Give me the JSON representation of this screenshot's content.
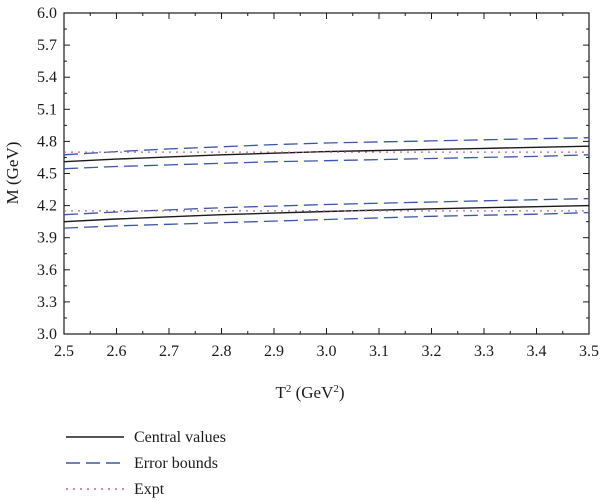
{
  "chart_data": {
    "type": "line",
    "title": "",
    "xlabel": {
      "base": "T",
      "sup": "2",
      "unit_pre": " (GeV",
      "unit_sup": "2",
      "unit_post": ")"
    },
    "ylabel": "M (GeV)",
    "xlim": [
      2.5,
      3.5
    ],
    "ylim": [
      3.0,
      6.0
    ],
    "xticks": [
      "2.5",
      "2.6",
      "2.7",
      "2.8",
      "2.9",
      "3.0",
      "3.1",
      "3.2",
      "3.3",
      "3.4",
      "3.5"
    ],
    "yticks": [
      "3.0",
      "3.3",
      "3.6",
      "3.9",
      "4.2",
      "4.5",
      "4.8",
      "5.1",
      "5.4",
      "5.7",
      "6.0"
    ],
    "x": [
      2.5,
      2.6,
      2.7,
      2.8,
      2.9,
      3.0,
      3.1,
      3.2,
      3.3,
      3.4,
      3.5
    ],
    "series": [
      {
        "name": "Central values",
        "group": "upper",
        "style": "solid",
        "color": "#1a1a1a",
        "values": [
          4.61,
          4.635,
          4.655,
          4.675,
          4.69,
          4.705,
          4.715,
          4.725,
          4.735,
          4.745,
          4.755
        ]
      },
      {
        "name": "Error bounds",
        "group": "upper-high",
        "style": "dashed",
        "color": "#3b55a8",
        "values": [
          4.675,
          4.705,
          4.73,
          4.75,
          4.77,
          4.785,
          4.795,
          4.805,
          4.815,
          4.825,
          4.835
        ]
      },
      {
        "name": "Error bounds",
        "group": "upper-low",
        "style": "dashed",
        "color": "#3b55a8",
        "values": [
          4.545,
          4.565,
          4.58,
          4.595,
          4.61,
          4.62,
          4.63,
          4.64,
          4.65,
          4.66,
          4.675
        ]
      },
      {
        "name": "Expt",
        "group": "upper",
        "style": "dotted",
        "color": "#c0609c",
        "values": [
          4.7,
          4.7,
          4.7,
          4.7,
          4.7,
          4.7,
          4.7,
          4.7,
          4.7,
          4.7,
          4.7
        ]
      },
      {
        "name": "Central values",
        "group": "lower",
        "style": "solid",
        "color": "#1a1a1a",
        "values": [
          4.05,
          4.075,
          4.095,
          4.115,
          4.13,
          4.145,
          4.158,
          4.17,
          4.18,
          4.19,
          4.2
        ]
      },
      {
        "name": "Error bounds",
        "group": "lower-high",
        "style": "dashed",
        "color": "#3b55a8",
        "values": [
          4.115,
          4.14,
          4.16,
          4.18,
          4.195,
          4.21,
          4.222,
          4.234,
          4.245,
          4.255,
          4.265
        ]
      },
      {
        "name": "Error bounds",
        "group": "lower-low",
        "style": "dashed",
        "color": "#3b55a8",
        "values": [
          3.99,
          4.01,
          4.025,
          4.04,
          4.055,
          4.07,
          4.085,
          4.1,
          4.11,
          4.12,
          4.135
        ]
      },
      {
        "name": "Expt",
        "group": "lower",
        "style": "dotted",
        "color": "#c0609c",
        "values": [
          4.15,
          4.15,
          4.15,
          4.15,
          4.15,
          4.15,
          4.15,
          4.15,
          4.15,
          4.15,
          4.15
        ]
      }
    ],
    "legend": [
      {
        "label": "Central values",
        "style": "solid",
        "color": "#1a1a1a"
      },
      {
        "label": "Error bounds",
        "style": "dashed",
        "color": "#3b55a8"
      },
      {
        "label": "Expt",
        "style": "dotted",
        "color": "#c0609c"
      }
    ]
  }
}
